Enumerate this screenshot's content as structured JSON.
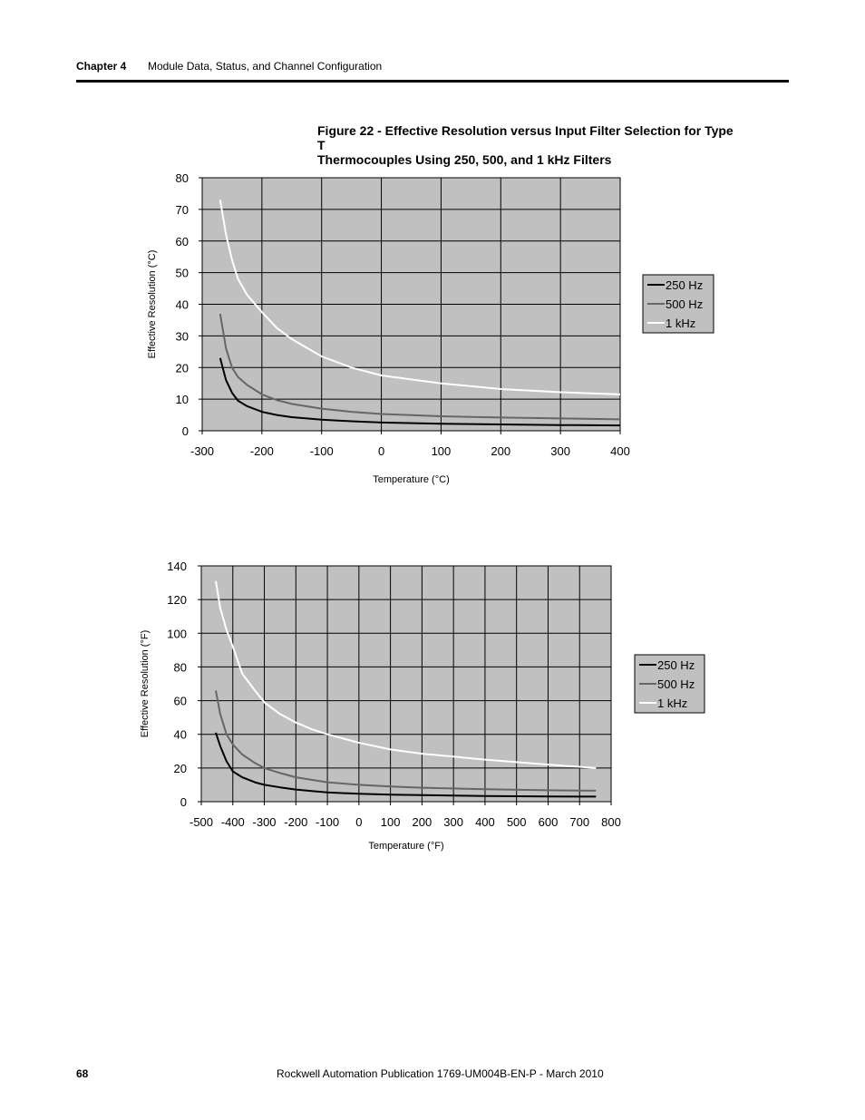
{
  "header": {
    "chapter": "Chapter 4",
    "section": "Module Data, Status, and Channel Configuration"
  },
  "figure": {
    "title_line1": "Figure 22 - Effective Resolution versus Input Filter Selection for Type T",
    "title_line2": "Thermocouples Using 250, 500, and 1 kHz Filters"
  },
  "footer": {
    "page_number": "68",
    "publication": "Rockwell Automation Publication 1769-UM004B-EN-P - March 2010"
  },
  "colors": {
    "plot_bg": "#c0c0c0",
    "grid": "#000000",
    "series_250": "#000000",
    "series_500": "#666666",
    "series_1k": "#ffffff"
  },
  "chart_data": [
    {
      "type": "line",
      "title": "",
      "xlabel": "Temperature (°C)",
      "ylabel": "Effective Resolution (°C)",
      "xlim": [
        -300,
        400
      ],
      "ylim": [
        0,
        80
      ],
      "xticks": [
        -300,
        -200,
        -100,
        0,
        100,
        200,
        300,
        400
      ],
      "yticks": [
        0,
        10,
        20,
        30,
        40,
        50,
        60,
        70,
        80
      ],
      "grid": true,
      "legend_position": "right",
      "series": [
        {
          "name": "250 Hz",
          "color": "#000000",
          "x": [
            -270,
            -260,
            -250,
            -240,
            -225,
            -200,
            -175,
            -150,
            -100,
            -50,
            0,
            100,
            200,
            300,
            400
          ],
          "y": [
            23,
            16,
            12,
            9.5,
            7.8,
            6,
            5,
            4.3,
            3.5,
            3,
            2.6,
            2.2,
            2,
            1.8,
            1.7
          ]
        },
        {
          "name": "500 Hz",
          "color": "#666666",
          "x": [
            -270,
            -260,
            -250,
            -240,
            -225,
            -200,
            -175,
            -150,
            -100,
            -50,
            0,
            100,
            200,
            300,
            400
          ],
          "y": [
            37,
            26,
            20,
            17,
            14.5,
            11.5,
            9.7,
            8.5,
            7,
            6,
            5.3,
            4.6,
            4.2,
            3.9,
            3.6
          ]
        },
        {
          "name": "1 kHz",
          "color": "#ffffff",
          "x": [
            -270,
            -260,
            -250,
            -240,
            -225,
            -200,
            -175,
            -150,
            -100,
            -50,
            0,
            100,
            200,
            300,
            400
          ],
          "y": [
            73,
            62,
            54,
            48,
            43,
            37.5,
            32.5,
            29,
            23.5,
            20,
            17.5,
            15,
            13.2,
            12.2,
            11.5
          ]
        }
      ]
    },
    {
      "type": "line",
      "title": "",
      "xlabel": "Temperature (°F)",
      "ylabel": "Effective Resolution (°F)",
      "xlim": [
        -500,
        800
      ],
      "ylim": [
        0,
        140
      ],
      "xticks": [
        -500,
        -400,
        -300,
        -200,
        -100,
        0,
        100,
        200,
        300,
        400,
        500,
        600,
        700,
        800
      ],
      "yticks": [
        0,
        20,
        40,
        60,
        80,
        100,
        120,
        140
      ],
      "grid": true,
      "legend_position": "right",
      "series": [
        {
          "name": "250 Hz",
          "color": "#000000",
          "x": [
            -454,
            -440,
            -420,
            -400,
            -370,
            -330,
            -300,
            -250,
            -200,
            -150,
            -100,
            0,
            100,
            200,
            400,
            600,
            752
          ],
          "y": [
            41,
            33,
            24,
            18,
            14.5,
            11.5,
            10,
            8.5,
            7.2,
            6.3,
            5.5,
            4.7,
            4.2,
            3.9,
            3.4,
            3.1,
            3
          ]
        },
        {
          "name": "500 Hz",
          "color": "#666666",
          "x": [
            -454,
            -440,
            -420,
            -400,
            -370,
            -330,
            -300,
            -250,
            -200,
            -150,
            -100,
            0,
            100,
            200,
            400,
            600,
            752
          ],
          "y": [
            66,
            52,
            40,
            34,
            28,
            23,
            20,
            17,
            14.5,
            13,
            11.5,
            10,
            9,
            8.3,
            7.4,
            6.8,
            6.5
          ]
        },
        {
          "name": "1 kHz",
          "color": "#ffffff",
          "x": [
            -454,
            -440,
            -420,
            -400,
            -370,
            -330,
            -300,
            -250,
            -200,
            -150,
            -100,
            0,
            100,
            200,
            400,
            600,
            752
          ],
          "y": [
            131,
            115,
            102,
            92,
            76,
            66,
            59,
            52,
            47,
            43,
            40,
            35,
            31,
            28.5,
            25,
            22,
            20
          ]
        }
      ]
    }
  ]
}
